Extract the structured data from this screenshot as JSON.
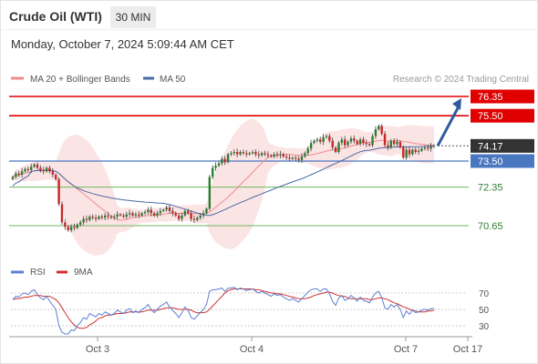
{
  "header": {
    "instrument": "Crude Oil (WTI)",
    "timeframe": "30 MIN",
    "timestamp": "Monday, October 7, 2024 5:09:44 AM CET",
    "credit": "Research © 2024 Trading Central"
  },
  "colors": {
    "bullish_candle": "#2e7d32",
    "bearish_candle": "#c62828",
    "ma20": "#f08c8c",
    "bollinger_band": "#fbe1e1",
    "ma50": "#4a6aa6",
    "resistance": "#e00000",
    "support_blue": "#4a78c0",
    "support_green": "#6cb85c",
    "current_price_label": "#333333",
    "forecast_arrow": "#2e5c9e",
    "rsi": "#5b7fd4",
    "rsi_ma": "#d03030"
  },
  "chart_data": [
    {
      "type": "candlestick",
      "title": "Crude Oil (WTI)",
      "interval": "30 MIN",
      "legend": [
        {
          "name": "MA 20 + Bollinger Bands",
          "icon": "line-swatch"
        },
        {
          "name": "MA 50",
          "icon": "line-swatch"
        }
      ],
      "legend_position": "top-left",
      "ylim": [
        69.4,
        76.8
      ],
      "x_ticks": [
        "Oct 3",
        "Oct 4",
        "Oct 7",
        "Oct 17"
      ],
      "grid": false,
      "close": [
        72.8,
        72.95,
        72.9,
        73.05,
        73.15,
        73.1,
        73.25,
        73.35,
        73.2,
        73.1,
        73.05,
        73.2,
        73.05,
        72.9,
        72.7,
        71.6,
        70.8,
        70.6,
        70.45,
        70.6,
        70.55,
        70.7,
        70.8,
        70.95,
        70.9,
        71.05,
        71.0,
        70.95,
        71.05,
        71.0,
        71.1,
        71.05,
        71.0,
        71.05,
        71.15,
        71.1,
        71.05,
        71.15,
        71.2,
        71.1,
        71.15,
        71.1,
        71.2,
        71.25,
        71.35,
        71.2,
        71.1,
        71.2,
        71.3,
        71.35,
        71.45,
        71.3,
        71.2,
        71.1,
        70.95,
        71.1,
        71.3,
        71.2,
        70.95,
        70.9,
        71.0,
        71.1,
        71.2,
        71.4,
        72.8,
        73.2,
        73.3,
        73.4,
        73.6,
        73.45,
        73.8,
        73.85,
        73.9,
        73.8,
        73.9,
        73.85,
        73.8,
        73.85,
        73.9,
        73.8,
        73.75,
        73.85,
        73.8,
        73.75,
        73.7,
        73.8,
        73.75,
        73.8,
        73.7,
        73.65,
        73.6,
        73.65,
        73.6,
        73.55,
        73.7,
        73.85,
        74.05,
        74.3,
        74.4,
        74.45,
        74.35,
        74.55,
        74.6,
        74.4,
        74.1,
        73.9,
        74.3,
        74.45,
        74.2,
        74.35,
        74.5,
        74.4,
        74.25,
        74.45,
        74.3,
        74.25,
        74.2,
        74.6,
        74.9,
        75.05,
        74.7,
        74.2,
        74.1,
        74.4,
        74.25,
        74.35,
        74.1,
        73.65,
        74.0,
        73.8,
        74.0,
        73.9,
        73.95,
        74.05,
        74.1,
        74.05,
        74.15,
        74.17
      ],
      "series": [
        {
          "name": "MA 20 + Bollinger Bands"
        },
        {
          "name": "MA 50"
        }
      ],
      "levels": [
        {
          "label": "76.35",
          "value": 76.35,
          "kind": "resistance"
        },
        {
          "label": "75.50",
          "value": 75.5,
          "kind": "resistance"
        },
        {
          "label": "74.17",
          "value": 74.17,
          "kind": "current"
        },
        {
          "label": "73.50",
          "value": 73.5,
          "kind": "support"
        },
        {
          "label": "72.35",
          "value": 72.35,
          "kind": "support"
        },
        {
          "label": "70.65",
          "value": 70.65,
          "kind": "support"
        }
      ],
      "forecast_arrow": {
        "from": 74.17,
        "to": 76.35
      }
    },
    {
      "type": "line",
      "legend": [
        {
          "name": "RSI",
          "icon": "line-swatch"
        },
        {
          "name": "9MA",
          "icon": "line-swatch"
        }
      ],
      "ylim": [
        20,
        80
      ],
      "y_ticks": [
        "70",
        "50",
        "30"
      ],
      "grid": false,
      "series": [
        {
          "name": "RSI",
          "values": [
            62,
            66,
            65,
            69,
            70,
            68,
            72,
            74,
            68,
            64,
            62,
            66,
            60,
            55,
            50,
            30,
            22,
            20,
            20,
            25,
            24,
            30,
            34,
            40,
            38,
            45,
            43,
            41,
            45,
            43,
            47,
            45,
            43,
            45,
            49,
            47,
            45,
            49,
            51,
            46,
            48,
            46,
            50,
            52,
            56,
            50,
            46,
            50,
            54,
            56,
            59,
            53,
            49,
            45,
            40,
            46,
            53,
            49,
            40,
            38,
            42,
            46,
            50,
            56,
            72,
            74,
            74,
            75,
            76,
            72,
            76,
            76,
            77,
            74,
            76,
            75,
            73,
            74,
            75,
            72,
            70,
            72,
            70,
            68,
            66,
            69,
            67,
            68,
            65,
            63,
            61,
            63,
            61,
            59,
            63,
            67,
            71,
            74,
            75,
            75,
            72,
            75,
            75,
            69,
            60,
            55,
            64,
            67,
            61,
            63,
            67,
            64,
            60,
            65,
            61,
            60,
            58,
            65,
            70,
            72,
            64,
            52,
            50,
            56,
            53,
            56,
            50,
            40,
            48,
            44,
            49,
            46,
            47,
            49,
            50,
            49,
            51,
            51
          ]
        },
        {
          "name": "9MA",
          "values": [
            62,
            63,
            63,
            64,
            65,
            65,
            66,
            67,
            67,
            67,
            66,
            66,
            66,
            64,
            62,
            58,
            52,
            46,
            40,
            35,
            31,
            28,
            27,
            27,
            28,
            31,
            33,
            36,
            39,
            40,
            42,
            43,
            43,
            44,
            45,
            45,
            45,
            46,
            47,
            47,
            47,
            47,
            47,
            48,
            49,
            49,
            49,
            49,
            50,
            51,
            52,
            52,
            52,
            51,
            50,
            50,
            50,
            50,
            49,
            47,
            46,
            46,
            46,
            47,
            50,
            54,
            58,
            62,
            66,
            70,
            73,
            74,
            75,
            75,
            75,
            75,
            75,
            75,
            75,
            74,
            74,
            73,
            72,
            71,
            70,
            70,
            69,
            69,
            68,
            67,
            66,
            65,
            64,
            63,
            63,
            63,
            64,
            65,
            67,
            68,
            69,
            70,
            71,
            71,
            70,
            68,
            67,
            66,
            66,
            64,
            63,
            63,
            63,
            63,
            63,
            63,
            62,
            62,
            63,
            64,
            64,
            63,
            62,
            60,
            58,
            57,
            55,
            53,
            52,
            50,
            49,
            48,
            47,
            47,
            47,
            48,
            48,
            49
          ]
        }
      ]
    }
  ]
}
